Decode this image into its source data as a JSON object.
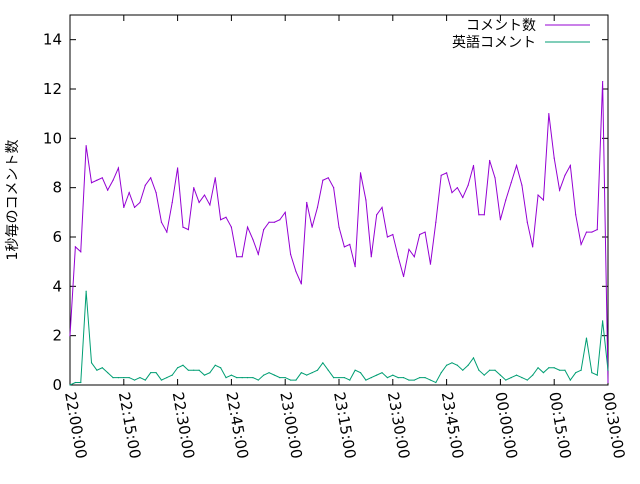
{
  "chart_data": {
    "type": "line",
    "title": "",
    "xlabel": "",
    "ylabel": "1秒毎のコメント数",
    "ylim": [
      0,
      15
    ],
    "yticks": [
      0,
      2,
      4,
      6,
      8,
      10,
      12,
      14
    ],
    "xlim": [
      "22:00:00",
      "00:30:00"
    ],
    "x_tick_labels": [
      "22:00:00",
      "22:15:00",
      "22:30:00",
      "22:45:00",
      "23:00:00",
      "23:15:00",
      "23:30:00",
      "23:45:00",
      "00:00:00",
      "00:15:00",
      "00:30:00"
    ],
    "grid": false,
    "legend_position": "top-right",
    "x_minutes": [
      0,
      1.5,
      3,
      4.5,
      6,
      7.5,
      9,
      10.5,
      12,
      13.5,
      15,
      16.5,
      18,
      19.5,
      21,
      22.5,
      24,
      25.5,
      27,
      28.5,
      30,
      31.5,
      33,
      34.5,
      36,
      37.5,
      39,
      40.5,
      42,
      43.5,
      45,
      46.5,
      48,
      49.5,
      51,
      52.5,
      54,
      55.5,
      57,
      58.5,
      60,
      61.5,
      63,
      64.5,
      66,
      67.5,
      69,
      70.5,
      72,
      73.5,
      75,
      76.5,
      78,
      79.5,
      81,
      82.5,
      84,
      85.5,
      87,
      88.5,
      90,
      91.5,
      93,
      94.5,
      96,
      97.5,
      99,
      100.5,
      102,
      103.5,
      105,
      106.5,
      108,
      109.5,
      111,
      112.5,
      114,
      115.5,
      117,
      118.5,
      120,
      121.5,
      123,
      124.5,
      126,
      127.5,
      129,
      130.5,
      132,
      133.5,
      135,
      136.5,
      138,
      139.5,
      141,
      142.5,
      144,
      145.5,
      147,
      148.5,
      150
    ],
    "series": [
      {
        "name": "コメント数",
        "color": "#9400d3",
        "values": [
          2.0,
          5.6,
          5.4,
          9.7,
          8.2,
          8.3,
          8.4,
          7.9,
          8.3,
          8.8,
          7.2,
          7.8,
          7.2,
          7.4,
          8.1,
          8.4,
          7.8,
          6.6,
          6.2,
          7.4,
          8.8,
          6.4,
          6.3,
          8.0,
          7.4,
          7.7,
          7.3,
          8.4,
          6.7,
          6.8,
          6.4,
          5.2,
          5.2,
          6.4,
          5.9,
          5.3,
          6.3,
          6.6,
          6.6,
          6.7,
          7.0,
          5.3,
          4.6,
          4.1,
          7.4,
          6.4,
          7.2,
          8.3,
          8.4,
          8.0,
          6.4,
          5.6,
          5.7,
          4.8,
          8.6,
          7.5,
          5.2,
          6.9,
          7.2,
          6.0,
          6.1,
          5.2,
          4.4,
          5.5,
          5.2,
          6.1,
          6.2,
          4.9,
          6.6,
          8.5,
          8.6,
          7.8,
          8.0,
          7.6,
          8.1,
          8.9,
          6.9,
          6.9,
          9.1,
          8.4,
          6.7,
          7.5,
          8.2,
          8.9,
          8.1,
          6.6,
          5.6,
          7.7,
          7.5,
          11.0,
          9.2,
          7.9,
          8.5,
          8.9,
          6.9,
          5.7,
          6.2,
          6.2,
          6.3,
          12.3,
          0.1
        ]
      },
      {
        "name": "英語コメント",
        "color": "#009e73",
        "values": [
          0.0,
          0.1,
          0.1,
          3.8,
          0.9,
          0.6,
          0.7,
          0.5,
          0.3,
          0.3,
          0.3,
          0.3,
          0.2,
          0.3,
          0.2,
          0.5,
          0.5,
          0.2,
          0.3,
          0.4,
          0.7,
          0.8,
          0.6,
          0.6,
          0.6,
          0.4,
          0.5,
          0.8,
          0.7,
          0.3,
          0.4,
          0.3,
          0.3,
          0.3,
          0.3,
          0.2,
          0.4,
          0.5,
          0.4,
          0.3,
          0.3,
          0.2,
          0.2,
          0.5,
          0.4,
          0.5,
          0.6,
          0.9,
          0.6,
          0.3,
          0.3,
          0.3,
          0.2,
          0.6,
          0.5,
          0.2,
          0.3,
          0.4,
          0.5,
          0.3,
          0.4,
          0.3,
          0.3,
          0.2,
          0.2,
          0.3,
          0.3,
          0.2,
          0.1,
          0.5,
          0.8,
          0.9,
          0.8,
          0.6,
          0.8,
          1.1,
          0.6,
          0.4,
          0.6,
          0.6,
          0.4,
          0.2,
          0.3,
          0.4,
          0.3,
          0.2,
          0.4,
          0.7,
          0.5,
          0.7,
          0.7,
          0.6,
          0.6,
          0.2,
          0.5,
          0.6,
          1.9,
          0.5,
          0.4,
          2.6,
          0.6
        ]
      }
    ]
  }
}
